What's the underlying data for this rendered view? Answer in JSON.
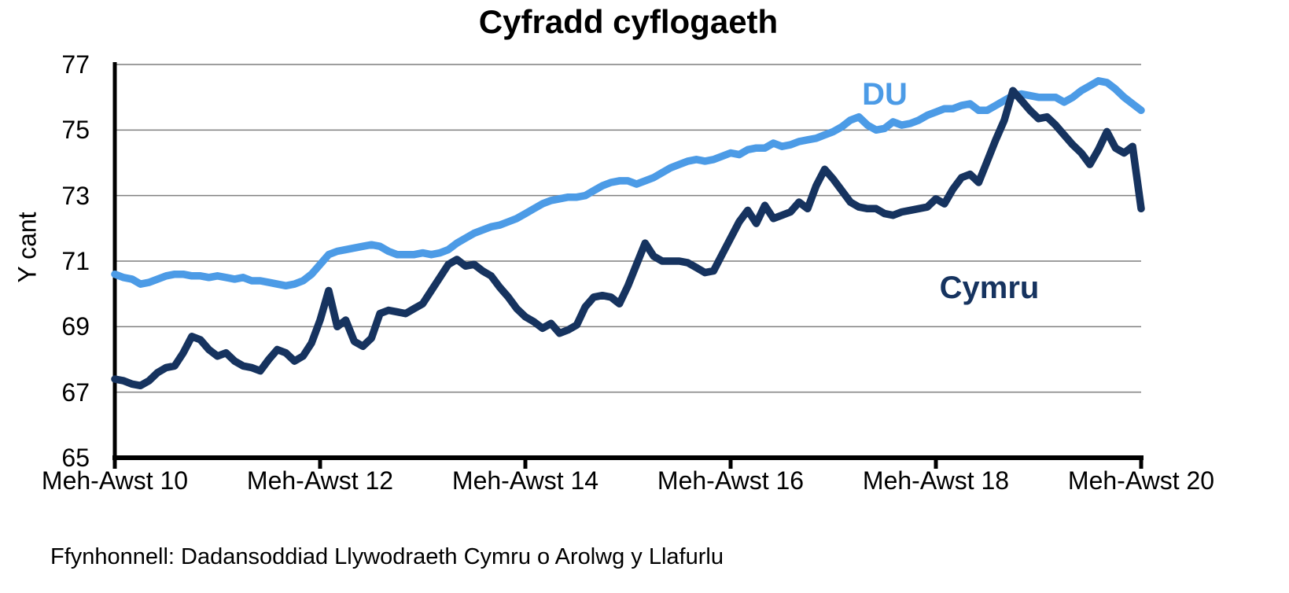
{
  "title": "Cyfradd cyflogaeth",
  "y_axis": {
    "label": "Y cant",
    "ticks": [
      77,
      75,
      73,
      71,
      69,
      67,
      65
    ]
  },
  "x_axis": {
    "tick_labels": [
      "Meh-Awst 10",
      "Meh-Awst 12",
      "Meh-Awst 14",
      "Meh-Awst 16",
      "Meh-Awst 18",
      "Meh-Awst 20"
    ],
    "tick_indices": [
      0,
      24,
      48,
      72,
      96,
      120
    ]
  },
  "source": "Ffynhonnell: Dadansoddiad Llywodraeth Cymru o Arolwg y Llafurlu",
  "colors": {
    "du": "#4c9be6",
    "cymru": "#16335f",
    "gridline": "#7f7f7f",
    "axis": "#000000",
    "background": "#ffffff"
  },
  "chart_data": {
    "type": "line",
    "title": "Cyfradd cyflogaeth",
    "xlabel": "",
    "ylabel": "Y cant",
    "ylim": [
      65,
      77
    ],
    "grid": "horizontal",
    "legend_position": "inline-annotations",
    "x_tick_labels": [
      "Meh-Awst 10",
      "Meh-Awst 12",
      "Meh-Awst 14",
      "Meh-Awst 16",
      "Meh-Awst 18",
      "Meh-Awst 20"
    ],
    "x_description": "121 rolling three-month periods, monthly, Meh-Awst 2010 to Meh-Awst 2020",
    "series": [
      {
        "name": "DU",
        "color": "#4c9be6",
        "values": [
          70.6,
          70.5,
          70.45,
          70.3,
          70.35,
          70.45,
          70.55,
          70.6,
          70.6,
          70.55,
          70.55,
          70.5,
          70.55,
          70.5,
          70.45,
          70.5,
          70.4,
          70.4,
          70.35,
          70.3,
          70.25,
          70.3,
          70.4,
          70.6,
          70.9,
          71.2,
          71.3,
          71.35,
          71.4,
          71.45,
          71.5,
          71.45,
          71.3,
          71.2,
          71.2,
          71.2,
          71.25,
          71.2,
          71.25,
          71.35,
          71.55,
          71.7,
          71.85,
          71.95,
          72.05,
          72.1,
          72.2,
          72.3,
          72.45,
          72.6,
          72.75,
          72.85,
          72.9,
          72.95,
          72.95,
          73.0,
          73.15,
          73.3,
          73.4,
          73.45,
          73.45,
          73.35,
          73.45,
          73.55,
          73.7,
          73.85,
          73.95,
          74.05,
          74.1,
          74.05,
          74.1,
          74.2,
          74.3,
          74.25,
          74.4,
          74.45,
          74.45,
          74.6,
          74.5,
          74.55,
          74.65,
          74.7,
          74.75,
          74.85,
          74.95,
          75.1,
          75.3,
          75.4,
          75.15,
          75.0,
          75.05,
          75.25,
          75.15,
          75.2,
          75.3,
          75.45,
          75.55,
          75.65,
          75.65,
          75.75,
          75.8,
          75.6,
          75.6,
          75.75,
          75.9,
          76.05,
          76.1,
          76.05,
          76.0,
          76.0,
          76.0,
          75.85,
          76.0,
          76.2,
          76.35,
          76.5,
          76.45,
          76.25,
          76.0,
          75.8,
          75.6
        ]
      },
      {
        "name": "Cymru",
        "color": "#16335f",
        "values": [
          67.4,
          67.35,
          67.25,
          67.2,
          67.35,
          67.6,
          67.75,
          67.8,
          68.2,
          68.7,
          68.6,
          68.3,
          68.1,
          68.2,
          67.95,
          67.8,
          67.75,
          67.65,
          68.0,
          68.3,
          68.2,
          67.95,
          68.1,
          68.5,
          69.2,
          70.1,
          69.0,
          69.2,
          68.55,
          68.4,
          68.65,
          69.4,
          69.5,
          69.45,
          69.4,
          69.55,
          69.7,
          70.1,
          70.5,
          70.9,
          71.05,
          70.85,
          70.9,
          70.7,
          70.55,
          70.2,
          69.9,
          69.55,
          69.3,
          69.15,
          68.95,
          69.1,
          68.8,
          68.9,
          69.05,
          69.6,
          69.9,
          69.95,
          69.9,
          69.7,
          70.25,
          70.9,
          71.55,
          71.15,
          71.0,
          71.0,
          71.0,
          70.95,
          70.8,
          70.65,
          70.7,
          71.2,
          71.7,
          72.2,
          72.55,
          72.15,
          72.7,
          72.3,
          72.4,
          72.5,
          72.8,
          72.6,
          73.3,
          73.8,
          73.5,
          73.15,
          72.8,
          72.65,
          72.6,
          72.6,
          72.45,
          72.4,
          72.5,
          72.55,
          72.6,
          72.65,
          72.9,
          72.75,
          73.2,
          73.55,
          73.65,
          73.4,
          74.05,
          74.7,
          75.3,
          76.2,
          75.9,
          75.6,
          75.35,
          75.4,
          75.15,
          74.85,
          74.55,
          74.3,
          73.95,
          74.4,
          74.95,
          74.45,
          74.3,
          74.5,
          72.6
        ]
      }
    ],
    "annotations": [
      {
        "text": "DU",
        "color": "#4c9be6"
      },
      {
        "text": "Cymru",
        "color": "#16335f"
      }
    ]
  }
}
